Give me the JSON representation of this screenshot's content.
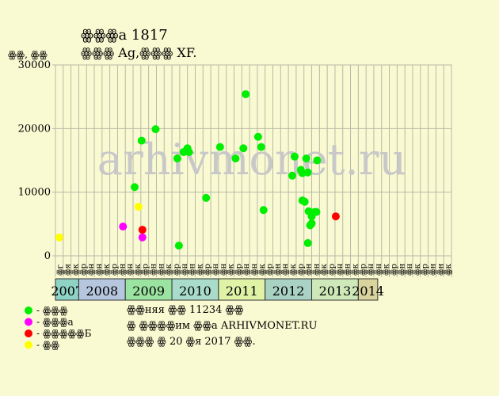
{
  "chart_data": {
    "type": "scatter",
    "title": "ꙮꙮꙮа 1817",
    "subtitle": "ꙮꙮꙮ Ag,ꙮꙮꙮ XF.",
    "ylabel": "ꙮꙮ, ꙮꙮ",
    "ylim": [
      0,
      30000
    ],
    "yticks": [
      "0",
      "10000",
      "20000",
      "30000"
    ],
    "grid": true,
    "watermark": "arhivmonet.ru",
    "months": [
      "ꙮг",
      "ꙮя",
      "ꙮк",
      "ꙮр",
      "ꙮн",
      "ꙮн",
      "ꙮк",
      "ꙮр",
      "ꙮн",
      "ꙮн",
      "ꙮк",
      "ꙮр",
      "ꙮн",
      "ꙮн",
      "ꙮк",
      "ꙮр",
      "ꙮн",
      "ꙮн",
      "ꙮк",
      "ꙮр",
      "ꙮн",
      "ꙮн",
      "ꙮк",
      "ꙮр",
      "ꙮн",
      "ꙮн",
      "ꙮк",
      "ꙮр",
      "ꙮн",
      "ꙮн",
      "ꙮк",
      "ꙮр",
      "ꙮн",
      "ꙮн",
      "ꙮк",
      "ꙮр",
      "ꙮн",
      "ꙮн",
      "ꙮк",
      "ꙮр",
      "ꙮн",
      "ꙮн",
      "ꙮк",
      "ꙮр",
      "ꙮн",
      "ꙮн",
      "ꙮк",
      "ꙮр",
      "ꙮн",
      "ꙮн",
      "ꙮк"
    ],
    "x_start": "2007-08",
    "years": [
      {
        "label": "2007",
        "start": 0,
        "end": 3,
        "color": "#8fd3c4"
      },
      {
        "label": "2008",
        "start": 3,
        "end": 9,
        "color": "#b6c6de"
      },
      {
        "label": "2009",
        "start": 9,
        "end": 15,
        "color": "#9be3a0"
      },
      {
        "label": "2010",
        "start": 15,
        "end": 21,
        "color": "#a9dccb"
      },
      {
        "label": "2011",
        "start": 21,
        "end": 27,
        "color": "#dff2a6"
      },
      {
        "label": "2012",
        "start": 27,
        "end": 33,
        "color": "#a9d2c4"
      },
      {
        "label": "2013",
        "start": 33,
        "end": 39,
        "color": "#cfe8b9"
      },
      {
        "label": "2014",
        "start": 39,
        "end": 41.5,
        "color": "#d9d49e"
      }
    ],
    "series": [
      {
        "key": "xf",
        "color": "#00ee00",
        "points": [
          [
            9.7,
            10800
          ],
          [
            10.6,
            18100
          ],
          [
            12.4,
            19900
          ],
          [
            15.2,
            15300
          ],
          [
            15.4,
            1600
          ],
          [
            16.0,
            16300
          ],
          [
            16.5,
            16900
          ],
          [
            16.7,
            16300
          ],
          [
            18.9,
            9100
          ],
          [
            20.7,
            17100
          ],
          [
            22.7,
            15300
          ],
          [
            23.7,
            16900
          ],
          [
            24.0,
            25400
          ],
          [
            25.6,
            18700
          ],
          [
            26.0,
            17100
          ],
          [
            26.3,
            7200
          ],
          [
            30.0,
            12600
          ],
          [
            30.3,
            15600
          ],
          [
            31.1,
            13500
          ],
          [
            31.3,
            13000
          ],
          [
            31.3,
            8700
          ],
          [
            31.6,
            8500
          ],
          [
            31.8,
            15300
          ],
          [
            32.0,
            13100
          ],
          [
            32.0,
            2000
          ],
          [
            32.1,
            7000
          ],
          [
            32.3,
            4800
          ],
          [
            32.5,
            5100
          ],
          [
            32.5,
            6200
          ],
          [
            32.6,
            6800
          ],
          [
            32.9,
            6900
          ],
          [
            33.1,
            6900
          ],
          [
            33.2,
            15000
          ]
        ]
      },
      {
        "key": "au",
        "color": "#ff00ff",
        "points": [
          [
            8.2,
            4600
          ],
          [
            10.7,
            2900
          ]
        ]
      },
      {
        "key": "unc",
        "color": "#ff0000",
        "points": [
          [
            10.7,
            4100
          ],
          [
            35.6,
            6200
          ]
        ]
      },
      {
        "key": "vf",
        "color": "#ffff00",
        "points": [
          [
            0.0,
            2900
          ],
          [
            10.2,
            7700
          ]
        ]
      }
    ],
    "legend": [
      {
        "key": "xf",
        "label": "- ꙮꙮꙮ",
        "color": "#00ee00"
      },
      {
        "key": "au",
        "label": "- ꙮꙮꙮа",
        "color": "#ff00ff"
      },
      {
        "key": "unc",
        "label": "- ꙮꙮꙮꙮꙮБ",
        "color": "#ff0000"
      },
      {
        "key": "vf",
        "label": "- ꙮꙮ",
        "color": "#ffff00"
      }
    ],
    "legend_position": "bottom-left",
    "notes": [
      "ꙮꙮняя ꙮꙮ 11234 ꙮꙮ",
      "ꙮ ꙮꙮꙮꙮим ꙮꙮа ARHIVMONET.RU",
      "ꙮꙮꙮ ꙮ 20 ꙮя 2017 ꙮꙮ."
    ]
  }
}
